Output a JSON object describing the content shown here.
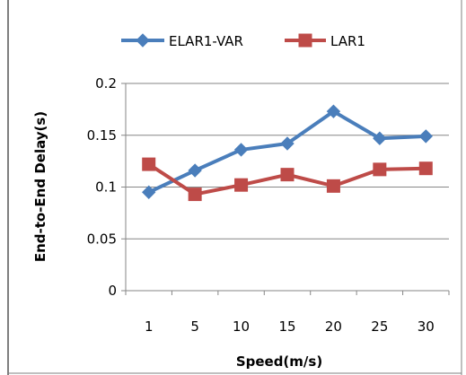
{
  "chart_data": {
    "type": "line",
    "title": "",
    "xlabel": "Speed(m/s)",
    "ylabel": "End-to-End Delay(s)",
    "categories": [
      "1",
      "5",
      "10",
      "15",
      "20",
      "25",
      "30"
    ],
    "ylim": [
      0,
      0.2
    ],
    "yticks": [
      "0",
      "0.05",
      "0.1",
      "0.15",
      "0.2"
    ],
    "grid": "horizontal",
    "legend_position": "top",
    "series": [
      {
        "name": "ELAR1-VAR",
        "color": "#4a7ebb",
        "marker": "diamond",
        "values": [
          0.095,
          0.116,
          0.136,
          0.142,
          0.173,
          0.147,
          0.149
        ]
      },
      {
        "name": "LAR1",
        "color": "#be4b48",
        "marker": "square",
        "values": [
          0.122,
          0.093,
          0.102,
          0.112,
          0.101,
          0.117,
          0.118
        ]
      }
    ]
  }
}
